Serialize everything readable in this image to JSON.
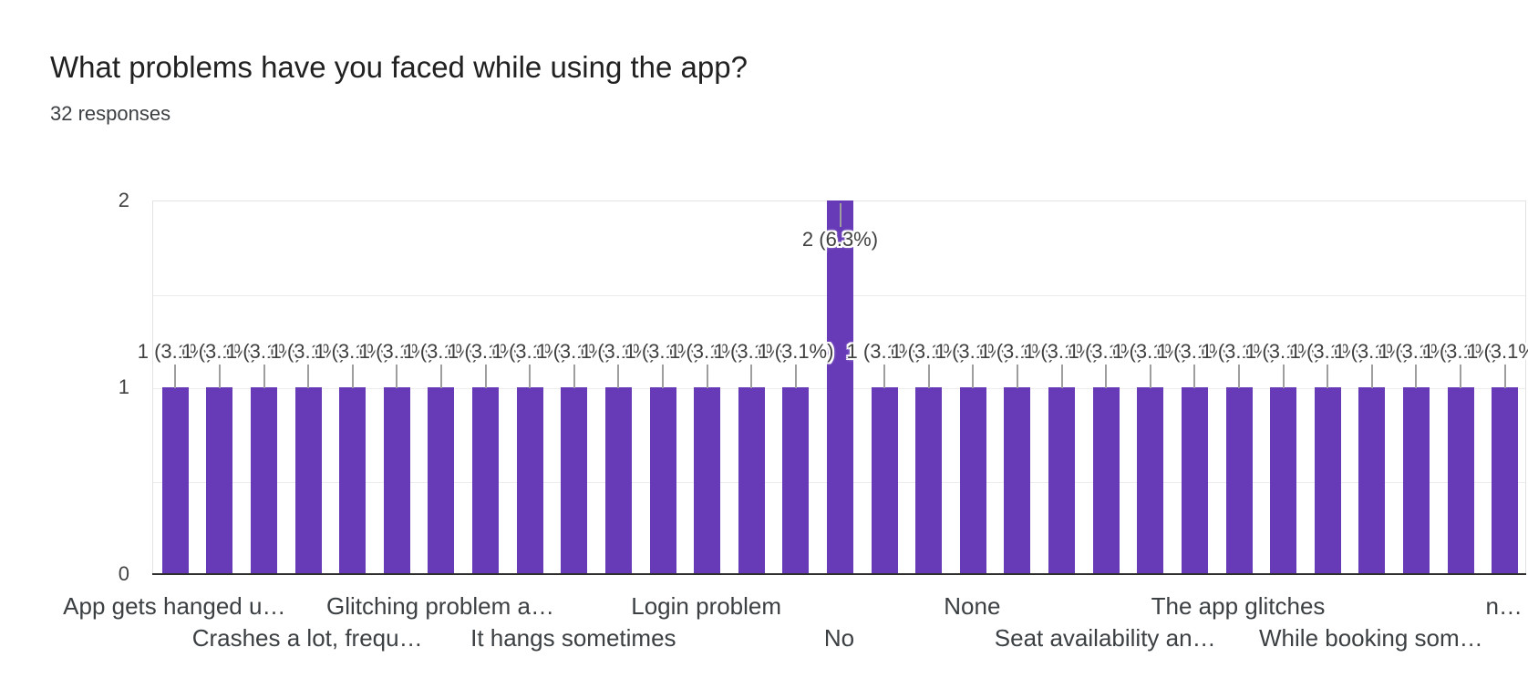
{
  "header": {
    "title": "What problems have you faced while using the app?",
    "subtitle": "32 responses"
  },
  "chart_data": {
    "type": "bar",
    "title": "What problems have you faced while using the app?",
    "subtitle": "32 responses",
    "xlabel": "",
    "ylabel": "",
    "ylim": [
      0,
      2
    ],
    "yticks": [
      "0",
      "1",
      "2"
    ],
    "grid": true,
    "legend": "none",
    "bar_color": "#673ab7",
    "leader_line_color": "#9e9e9e",
    "values": [
      1,
      1,
      1,
      1,
      1,
      1,
      1,
      1,
      1,
      1,
      1,
      1,
      1,
      1,
      1,
      2,
      1,
      1,
      1,
      1,
      1,
      1,
      1,
      1,
      1,
      1,
      1,
      1,
      1,
      1,
      1
    ],
    "value_label_map": {
      "1": "1 (3.1%)",
      "2": "2 (6.3%)"
    },
    "x_tick_labels": [
      {
        "text": "App gets hanged u…",
        "bar_index": 0,
        "row": 1
      },
      {
        "text": "Crashes a lot, frequ…",
        "bar_index": 3,
        "row": 2
      },
      {
        "text": "Glitching problem a…",
        "bar_index": 6,
        "row": 1
      },
      {
        "text": "It hangs sometimes",
        "bar_index": 9,
        "row": 2
      },
      {
        "text": "Login problem",
        "bar_index": 12,
        "row": 1
      },
      {
        "text": "No",
        "bar_index": 15,
        "row": 2
      },
      {
        "text": "None",
        "bar_index": 18,
        "row": 1
      },
      {
        "text": "Seat availability an…",
        "bar_index": 21,
        "row": 2
      },
      {
        "text": "The app glitches",
        "bar_index": 24,
        "row": 1
      },
      {
        "text": "While booking som…",
        "bar_index": 27,
        "row": 2
      },
      {
        "text": "n…",
        "bar_index": 30,
        "row": 1
      }
    ]
  }
}
